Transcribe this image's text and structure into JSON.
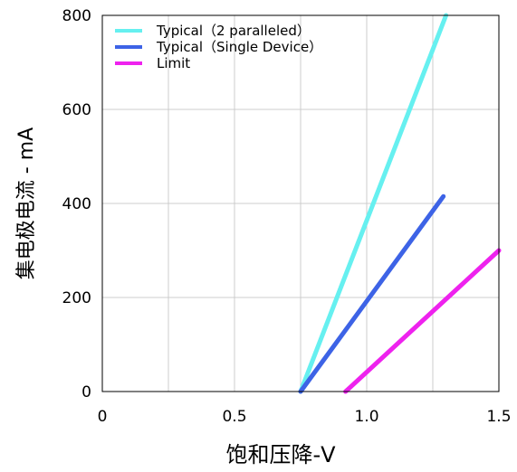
{
  "chart_data": {
    "type": "line",
    "title": "",
    "xlabel": "饱和压降-V",
    "ylabel": "集电极电流 - mA",
    "xlim": [
      0,
      1.5
    ],
    "ylim": [
      0,
      800
    ],
    "x_ticks": [
      "0",
      "0.5",
      "1.0",
      "1.5"
    ],
    "y_ticks": [
      "0",
      "200",
      "400",
      "600",
      "800"
    ],
    "x_tick_values": [
      0,
      0.5,
      1.0,
      1.5
    ],
    "y_tick_values": [
      0,
      200,
      400,
      600,
      800
    ],
    "grid": true,
    "legend_position": "top-left",
    "series": [
      {
        "name": "Typical（2 paralleled）",
        "color": "#66f0f0",
        "x": [
          0.75,
          1.3
        ],
        "y": [
          0,
          800
        ]
      },
      {
        "name": "Typical（Single Device）",
        "color": "#3d63e6",
        "x": [
          0.75,
          1.29
        ],
        "y": [
          0,
          415
        ]
      },
      {
        "name": "Limit",
        "color": "#ee22ee",
        "x": [
          0.92,
          1.5
        ],
        "y": [
          0,
          300
        ]
      }
    ]
  }
}
